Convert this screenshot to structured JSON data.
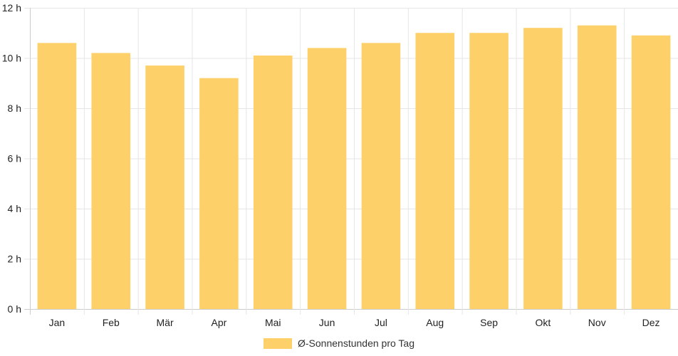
{
  "chart_data": {
    "type": "bar",
    "categories": [
      "Jan",
      "Feb",
      "Mär",
      "Apr",
      "Mai",
      "Jun",
      "Jul",
      "Aug",
      "Sep",
      "Okt",
      "Nov",
      "Dez"
    ],
    "series": [
      {
        "name": "Ø-Sonnenstunden pro Tag",
        "values": [
          10.6,
          10.2,
          9.7,
          9.2,
          10.1,
          10.4,
          10.6,
          11.0,
          11.0,
          11.2,
          11.3,
          10.9
        ],
        "color": "#fdd069"
      }
    ],
    "ylim": [
      0,
      12
    ],
    "yticks": [
      0,
      2,
      4,
      6,
      8,
      10,
      12
    ],
    "ytick_labels": [
      "0 h",
      "2 h",
      "4 h",
      "6 h",
      "8 h",
      "10 h",
      "12 h"
    ],
    "grid": true,
    "legend_position": "bottom",
    "colors": {
      "bar": "#fdd069",
      "grid": "#e6e6e6",
      "axis": "#cccccc",
      "text": "#222222"
    }
  }
}
